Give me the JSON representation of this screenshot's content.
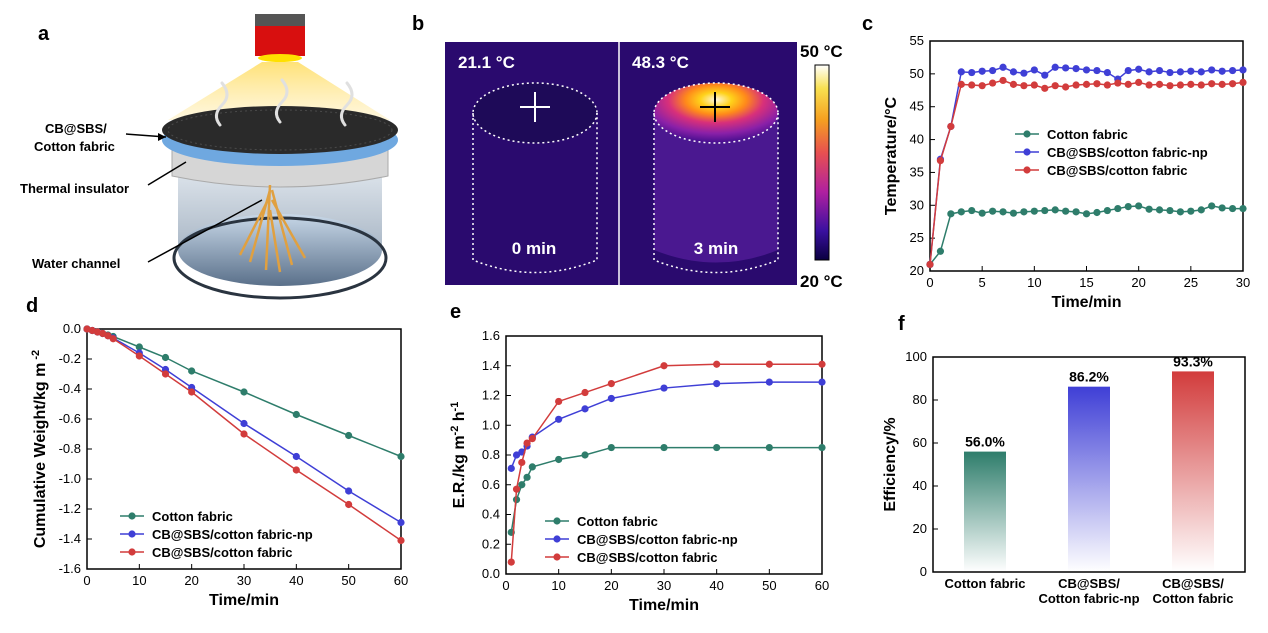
{
  "colors": {
    "green": "#2e7d6b",
    "blue": "#3f3fd6",
    "red": "#d23c3c",
    "irBg": "#2a0a6e",
    "deviceRed": "#d80f0f"
  },
  "panel_labels": {
    "a": "a",
    "b": "b",
    "c": "c",
    "d": "d",
    "e": "e",
    "f": "f"
  },
  "panel_a": {
    "labels": [
      "CB@SBS/",
      "Cotton fabric",
      "Thermal insulator",
      "Water channel"
    ]
  },
  "panel_b": {
    "left_temp": "21.1 °C",
    "right_temp": "48.3 °C",
    "left_time": "0 min",
    "right_time": "3 min",
    "scale_max": "50 °C",
    "scale_min": "20 °C"
  },
  "chart_data": [
    {
      "id": "c",
      "type": "line",
      "xlabel": "Time/min",
      "ylabel": "Temperature/°C",
      "xlim": [
        0,
        30
      ],
      "ylim": [
        20,
        55
      ],
      "xticks": [
        0,
        5,
        10,
        15,
        20,
        25,
        30
      ],
      "yticks": [
        20,
        25,
        30,
        35,
        40,
        45,
        50,
        55
      ],
      "x": [
        0,
        1,
        2,
        3,
        4,
        5,
        6,
        7,
        8,
        9,
        10,
        11,
        12,
        13,
        14,
        15,
        16,
        17,
        18,
        19,
        20,
        21,
        22,
        23,
        24,
        25,
        26,
        27,
        28,
        29,
        30
      ],
      "legend": "center-right",
      "series": [
        {
          "name": "Cotton fabric",
          "color": "#2e7d6b",
          "values": [
            21,
            23,
            28.7,
            29,
            29.2,
            28.8,
            29.1,
            29,
            28.8,
            29,
            29.1,
            29.2,
            29.3,
            29.1,
            29,
            28.7,
            28.9,
            29.2,
            29.5,
            29.8,
            29.9,
            29.4,
            29.3,
            29.2,
            29,
            29.1,
            29.3,
            29.9,
            29.6,
            29.5,
            29.5
          ]
        },
        {
          "name": "CB@SBS/cotton fabric-np",
          "color": "#3f3fd6",
          "values": [
            21,
            37,
            42,
            50.3,
            50.2,
            50.4,
            50.5,
            51,
            50.3,
            50.1,
            50.6,
            49.8,
            51,
            50.9,
            50.8,
            50.6,
            50.5,
            50.2,
            49.2,
            50.5,
            50.7,
            50.3,
            50.5,
            50.2,
            50.3,
            50.4,
            50.3,
            50.6,
            50.4,
            50.5,
            50.6
          ]
        },
        {
          "name": "CB@SBS/cotton fabric",
          "color": "#d23c3c",
          "values": [
            21,
            36.8,
            42,
            48.4,
            48.3,
            48.2,
            48.6,
            49,
            48.4,
            48.2,
            48.3,
            47.8,
            48.2,
            48,
            48.3,
            48.4,
            48.5,
            48.3,
            48.6,
            48.4,
            48.7,
            48.3,
            48.4,
            48.2,
            48.3,
            48.4,
            48.3,
            48.5,
            48.4,
            48.5,
            48.7
          ]
        }
      ]
    },
    {
      "id": "d",
      "type": "line",
      "xlabel": "Time/min",
      "ylabel": "Cumulative Weight/kg m",
      "ylabel_sup": "-2",
      "xlim": [
        0,
        60
      ],
      "ylim": [
        -1.6,
        0.0
      ],
      "xticks": [
        0,
        10,
        20,
        30,
        40,
        50,
        60
      ],
      "yticks": [
        0.0,
        -0.2,
        -0.4,
        -0.6,
        -0.8,
        -1.0,
        -1.2,
        -1.4,
        -1.6
      ],
      "legend": "bottom-left",
      "x": [
        0,
        1,
        2,
        3,
        4,
        5,
        10,
        15,
        20,
        30,
        40,
        50,
        60
      ],
      "series": [
        {
          "name": "Cotton fabric",
          "color": "#2e7d6b",
          "values": [
            0,
            -0.01,
            -0.02,
            -0.03,
            -0.04,
            -0.05,
            -0.12,
            -0.19,
            -0.28,
            -0.42,
            -0.57,
            -0.71,
            -0.85
          ]
        },
        {
          "name": "CB@SBS/cotton fabric-np",
          "color": "#3f3fd6",
          "values": [
            0,
            -0.01,
            -0.02,
            -0.03,
            -0.045,
            -0.06,
            -0.16,
            -0.27,
            -0.39,
            -0.63,
            -0.85,
            -1.08,
            -1.29
          ]
        },
        {
          "name": "CB@SBS/cotton fabric",
          "color": "#d23c3c",
          "values": [
            0,
            -0.01,
            -0.02,
            -0.03,
            -0.045,
            -0.065,
            -0.18,
            -0.3,
            -0.42,
            -0.7,
            -0.94,
            -1.17,
            -1.41
          ]
        }
      ]
    },
    {
      "id": "e",
      "type": "line",
      "xlabel": "Time/min",
      "ylabel": "E.R./kg m",
      "ylabel_sup1": "-2",
      "ylabel_mid": " h",
      "ylabel_sup2": "-1",
      "xlim": [
        0,
        60
      ],
      "ylim": [
        0.0,
        1.6
      ],
      "xticks": [
        0,
        10,
        20,
        30,
        40,
        50,
        60
      ],
      "yticks": [
        0.0,
        0.2,
        0.4,
        0.6,
        0.8,
        1.0,
        1.2,
        1.4,
        1.6
      ],
      "legend": "bottom-center",
      "series": [
        {
          "name": "Cotton fabric",
          "color": "#2e7d6b",
          "x": [
            1,
            2,
            3,
            4,
            5,
            10,
            15,
            20,
            30,
            40,
            50,
            60
          ],
          "values": [
            0.28,
            0.5,
            0.6,
            0.65,
            0.72,
            0.77,
            0.8,
            0.85,
            0.85,
            0.85,
            0.85,
            0.85
          ]
        },
        {
          "name": "CB@SBS/cotton fabric-np",
          "color": "#3f3fd6",
          "x": [
            1,
            2,
            3,
            4,
            5,
            10,
            15,
            20,
            30,
            40,
            50,
            60
          ],
          "values": [
            0.71,
            0.8,
            0.82,
            0.86,
            0.92,
            1.04,
            1.11,
            1.18,
            1.25,
            1.28,
            1.29,
            1.29
          ]
        },
        {
          "name": "CB@SBS/cotton fabric",
          "color": "#d23c3c",
          "x": [
            1,
            2,
            3,
            4,
            5,
            10,
            15,
            20,
            30,
            40,
            50,
            60
          ],
          "values": [
            0.08,
            0.57,
            0.75,
            0.88,
            0.91,
            1.16,
            1.22,
            1.28,
            1.4,
            1.41,
            1.41,
            1.41
          ]
        }
      ]
    },
    {
      "id": "f",
      "type": "bar",
      "ylabel": "Efficiency/%",
      "ylim": [
        0,
        100
      ],
      "yticks": [
        0,
        20,
        40,
        60,
        80,
        100
      ],
      "categories": [
        [
          "Cotton fabric"
        ],
        [
          "CB@SBS/",
          "Cotton fabric-np"
        ],
        [
          "CB@SBS/",
          "Cotton fabric"
        ]
      ],
      "values": [
        56.0,
        86.2,
        93.3
      ],
      "value_labels": [
        "56.0%",
        "86.2%",
        "93.3%"
      ],
      "colors": [
        "#2e7d6b",
        "#3f3fd6",
        "#d23c3c"
      ]
    }
  ]
}
